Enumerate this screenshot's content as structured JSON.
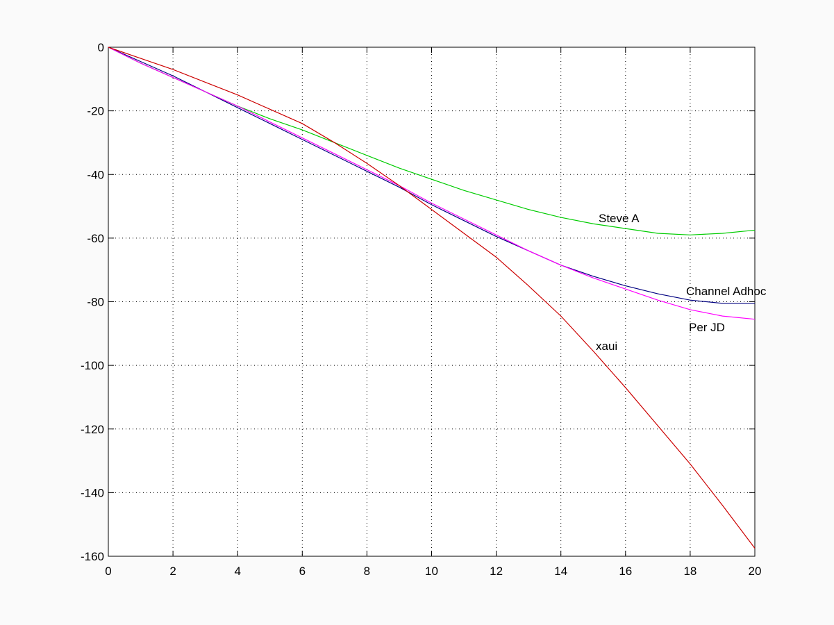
{
  "chart_data": {
    "type": "line",
    "x": [
      0,
      1,
      2,
      3,
      4,
      5,
      6,
      7,
      8,
      9,
      10,
      11,
      12,
      13,
      14,
      15,
      16,
      17,
      18,
      19,
      20
    ],
    "series": [
      {
        "name": "Steve A",
        "color": "#00cc00",
        "values": [
          0,
          -5,
          -9.5,
          -14,
          -18.5,
          -22.5,
          -26,
          -30,
          -34,
          -38,
          -41.5,
          -45,
          -48,
          -51,
          -53.5,
          -55.5,
          -57,
          -58.5,
          -59,
          -58.5,
          -57.5
        ]
      },
      {
        "name": "Channel Adhoc",
        "color": "#000080",
        "values": [
          0,
          -4.5,
          -9,
          -14,
          -19,
          -24,
          -29,
          -34,
          -39,
          -44,
          -49.5,
          -54.5,
          -59.5,
          -64,
          -68.5,
          -72,
          -75,
          -77.5,
          -79.5,
          -80.5,
          -80.5
        ]
      },
      {
        "name": "Per JD",
        "color": "#ff00ff",
        "values": [
          0,
          -5,
          -9.5,
          -14,
          -18.5,
          -23.5,
          -28.5,
          -33.5,
          -38.5,
          -43.5,
          -49,
          -54,
          -59,
          -64,
          -68.5,
          -72.5,
          -76,
          -79.5,
          -82.5,
          -84.5,
          -85.5
        ]
      },
      {
        "name": "xaui",
        "color": "#cc0000",
        "values": [
          0,
          -3.5,
          -7,
          -11,
          -15,
          -19.5,
          -24,
          -30,
          -36.5,
          -43.5,
          -51,
          -58.5,
          -66,
          -75,
          -84.5,
          -95.5,
          -107,
          -119,
          -131,
          -144,
          -157.5
        ]
      }
    ],
    "xlim": [
      0,
      20
    ],
    "xticks": [
      0,
      2,
      4,
      6,
      8,
      10,
      12,
      14,
      16,
      18,
      20
    ],
    "ylim": [
      -160,
      0
    ],
    "yticks": [
      0,
      -20,
      -40,
      -60,
      -80,
      -100,
      -120,
      -140,
      -160
    ],
    "grid": true
  }
}
